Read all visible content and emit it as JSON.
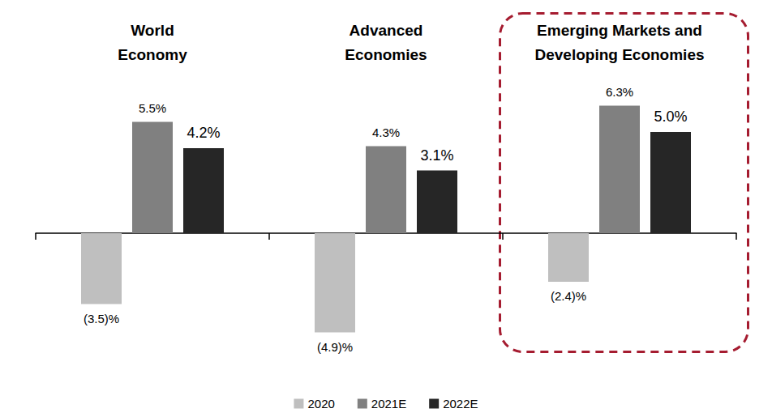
{
  "chart_data": {
    "type": "bar",
    "categories": [
      "World\nEconomy",
      "Advanced\nEconomies",
      "Emerging Markets and\nDeveloping Economies"
    ],
    "series": [
      {
        "name": "2020",
        "color": "#bfbfbf",
        "values": [
          -3.5,
          -4.9,
          -2.4
        ],
        "value_labels": [
          "(3.5)%",
          "(4.9)%",
          "(2.4)%"
        ]
      },
      {
        "name": "2021E",
        "color": "#808080",
        "values": [
          5.5,
          4.3,
          6.3
        ],
        "value_labels": [
          "5.5%",
          "4.3%",
          "6.3%"
        ]
      },
      {
        "name": "2022E",
        "color": "#262626",
        "values": [
          4.2,
          3.1,
          5.0
        ],
        "value_labels": [
          "4.2%",
          "3.1%",
          "5.0%"
        ]
      }
    ],
    "ylim": [
      -7,
      8
    ],
    "grid": false,
    "legend": "bottom",
    "data_labels": true,
    "tick_labels": "x"
  }
}
